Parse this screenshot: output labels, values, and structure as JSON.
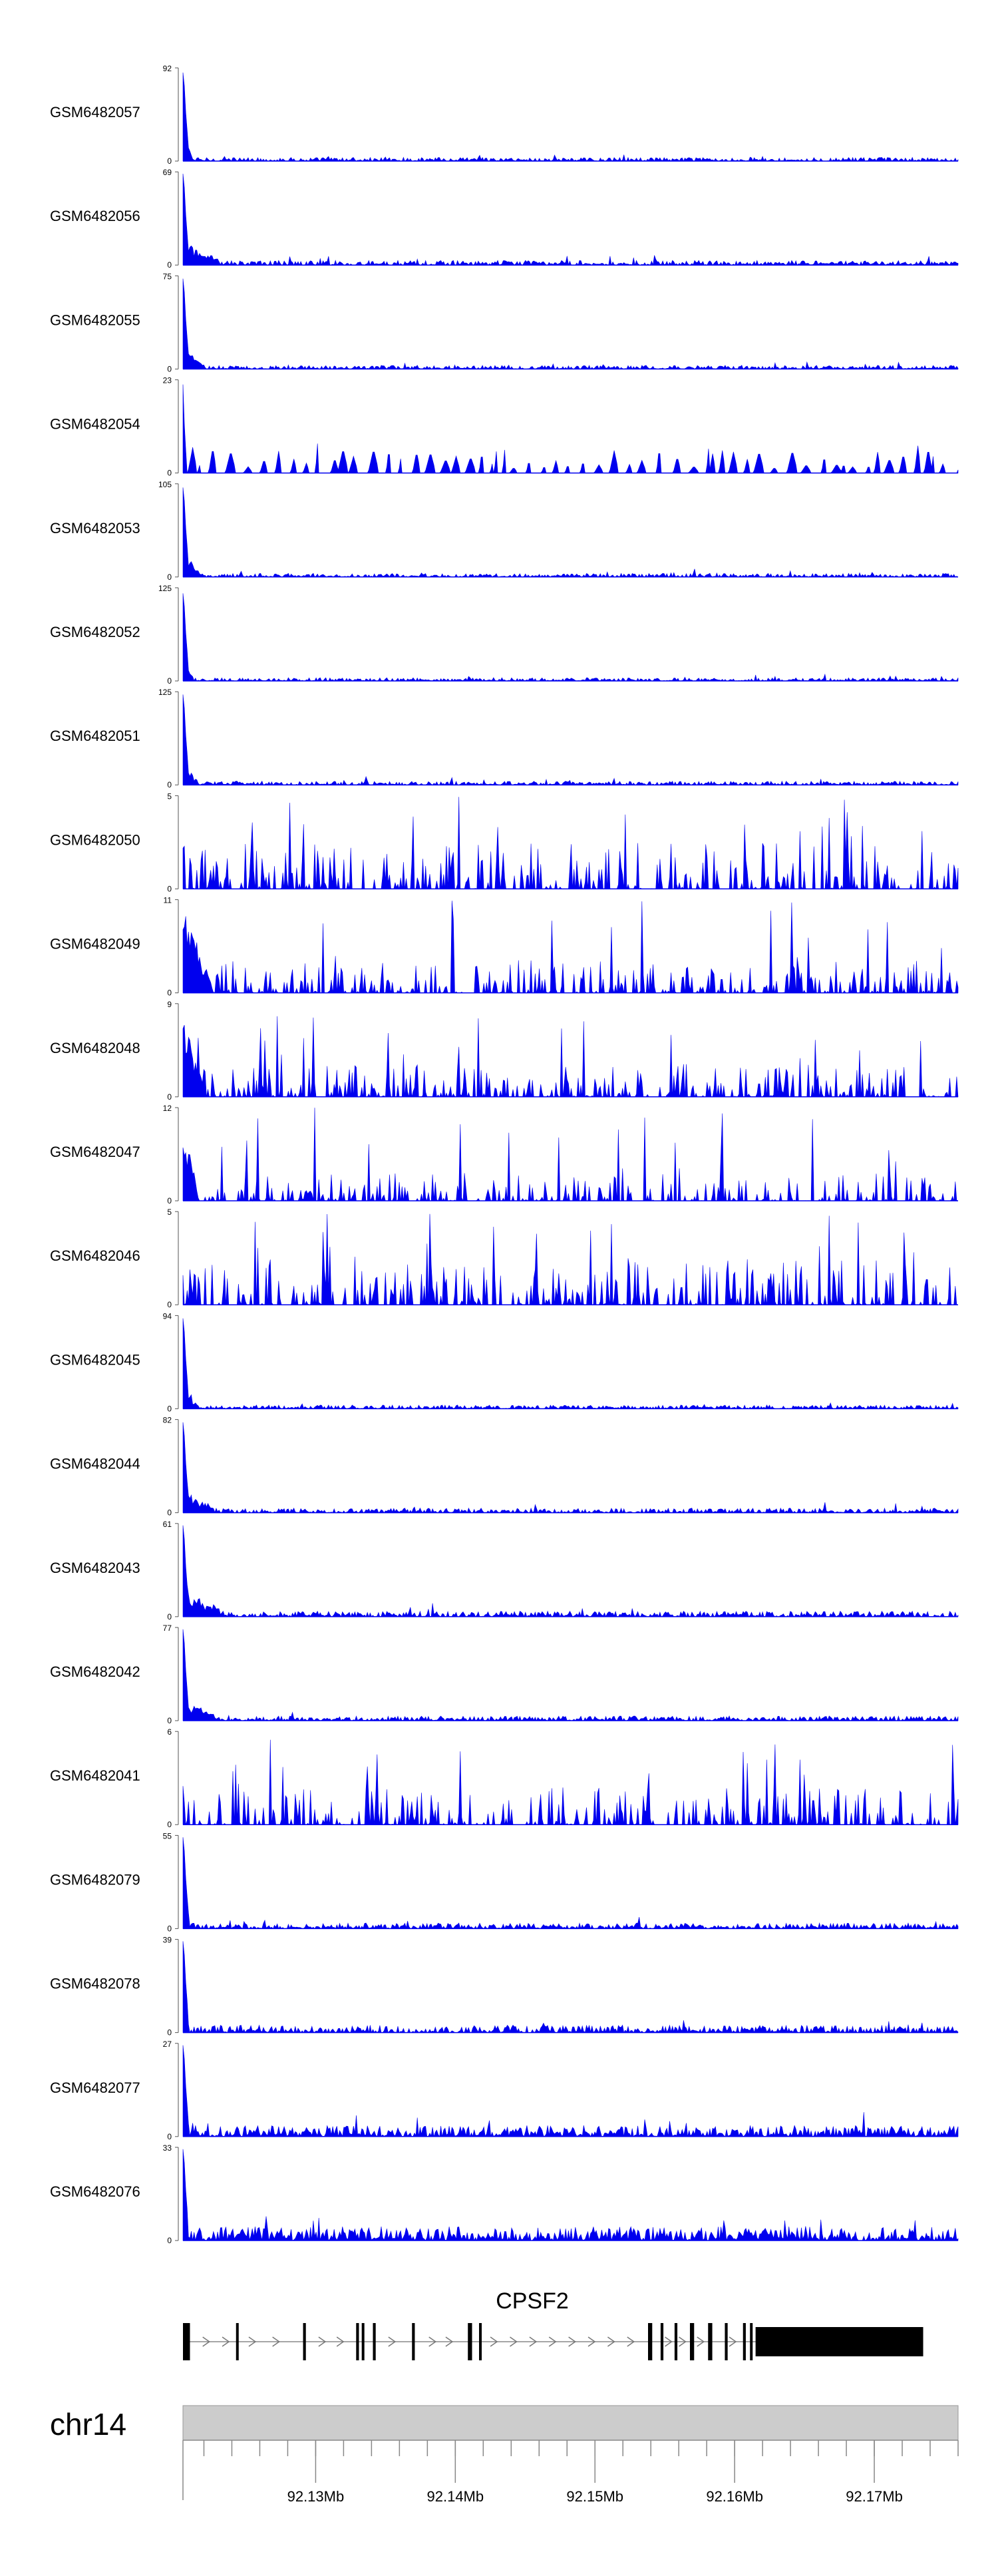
{
  "chart_data": {
    "type": "area",
    "color": "#0000ee",
    "gene_color": "#000000",
    "chromosome": {
      "label": "chr14",
      "fill": "#cccccc"
    },
    "x_axis": {
      "start": 92120500,
      "end": 92176000,
      "ticks": [
        92130000,
        92140000,
        92150000,
        92160000,
        92170000
      ],
      "tick_labels": [
        "92.13Mb",
        "92.14Mb",
        "92.15Mb",
        "92.16Mb",
        "92.17Mb"
      ],
      "minor_step": 2000
    },
    "gene": {
      "name": "CPSF2",
      "start": 92120500,
      "end": 92173500,
      "exons": [
        [
          92120500,
          92121000
        ],
        [
          92124300,
          92124400
        ],
        [
          92129100,
          92129300
        ],
        [
          92132900,
          92133100
        ],
        [
          92133300,
          92133400
        ],
        [
          92134100,
          92134300
        ],
        [
          92136900,
          92137100
        ],
        [
          92140900,
          92141200
        ],
        [
          92141700,
          92141800
        ],
        [
          92153800,
          92154100
        ],
        [
          92154700,
          92154900
        ],
        [
          92155700,
          92155900
        ],
        [
          92156800,
          92157100
        ],
        [
          92158100,
          92158400
        ],
        [
          92159300,
          92159500
        ],
        [
          92160600,
          92160800
        ],
        [
          92161100,
          92161200
        ],
        [
          92161500,
          92173500
        ]
      ],
      "arrows": [
        92122200,
        92123600,
        92125500,
        92127200,
        92130500,
        92131800,
        92135500,
        92138400,
        92139600,
        92142800,
        92144200,
        92145600,
        92147000,
        92148400,
        92149800,
        92151200,
        92152600,
        92155300,
        92156300,
        92157600,
        92159900
      ]
    },
    "series": [
      {
        "name": "GSM6482057",
        "max": 92,
        "profile": "peak",
        "peak_scale": 0.95,
        "bg": 0.04,
        "tail_len": 0.016
      },
      {
        "name": "GSM6482056",
        "max": 69,
        "profile": "peak",
        "peak_scale": 0.98,
        "bg": 0.05,
        "tail_len": 0.05
      },
      {
        "name": "GSM6482055",
        "max": 75,
        "profile": "peak",
        "peak_scale": 0.97,
        "bg": 0.04,
        "tail_len": 0.03
      },
      {
        "name": "GSM6482054",
        "max": 23,
        "profile": "spiky",
        "peak_scale": 0.95,
        "bg": 0.2,
        "tail_len": 0.014
      },
      {
        "name": "GSM6482053",
        "max": 105,
        "profile": "peak",
        "peak_scale": 0.96,
        "bg": 0.04,
        "tail_len": 0.025
      },
      {
        "name": "GSM6482052",
        "max": 125,
        "profile": "peak",
        "peak_scale": 0.94,
        "bg": 0.035,
        "tail_len": 0.016
      },
      {
        "name": "GSM6482051",
        "max": 125,
        "profile": "peak",
        "peak_scale": 0.97,
        "bg": 0.04,
        "tail_len": 0.02
      },
      {
        "name": "GSM6482050",
        "max": 5,
        "profile": "noisy",
        "peak_scale": 0.6,
        "bg": 0.5,
        "tail_len": 0.0
      },
      {
        "name": "GSM6482049",
        "max": 11,
        "profile": "noisy",
        "peak_scale": 0.97,
        "bg": 0.35,
        "tail_len": 0.04
      },
      {
        "name": "GSM6482048",
        "max": 9,
        "profile": "noisy",
        "peak_scale": 0.9,
        "bg": 0.35,
        "tail_len": 0.03
      },
      {
        "name": "GSM6482047",
        "max": 12,
        "profile": "noisy",
        "peak_scale": 0.92,
        "bg": 0.3,
        "tail_len": 0.02
      },
      {
        "name": "GSM6482046",
        "max": 5,
        "profile": "noisy",
        "peak_scale": 0.6,
        "bg": 0.5,
        "tail_len": 0.0
      },
      {
        "name": "GSM6482045",
        "max": 94,
        "profile": "peak",
        "peak_scale": 0.97,
        "bg": 0.04,
        "tail_len": 0.02
      },
      {
        "name": "GSM6482044",
        "max": 82,
        "profile": "peak",
        "peak_scale": 0.97,
        "bg": 0.05,
        "tail_len": 0.04
      },
      {
        "name": "GSM6482043",
        "max": 61,
        "profile": "peak",
        "peak_scale": 0.98,
        "bg": 0.06,
        "tail_len": 0.06
      },
      {
        "name": "GSM6482042",
        "max": 77,
        "profile": "peak",
        "peak_scale": 0.98,
        "bg": 0.05,
        "tail_len": 0.05
      },
      {
        "name": "GSM6482041",
        "max": 6,
        "profile": "noisy",
        "peak_scale": 0.55,
        "bg": 0.4,
        "tail_len": 0.0
      },
      {
        "name": "GSM6482079",
        "max": 55,
        "profile": "peak",
        "peak_scale": 0.98,
        "bg": 0.06,
        "tail_len": 0.01
      },
      {
        "name": "GSM6482078",
        "max": 39,
        "profile": "peak",
        "peak_scale": 0.98,
        "bg": 0.08,
        "tail_len": 0.01
      },
      {
        "name": "GSM6482077",
        "max": 27,
        "profile": "peak",
        "peak_scale": 0.98,
        "bg": 0.12,
        "tail_len": 0.01
      },
      {
        "name": "GSM6482076",
        "max": 33,
        "profile": "peak",
        "peak_scale": 0.98,
        "bg": 0.15,
        "tail_len": 0.01
      }
    ]
  }
}
